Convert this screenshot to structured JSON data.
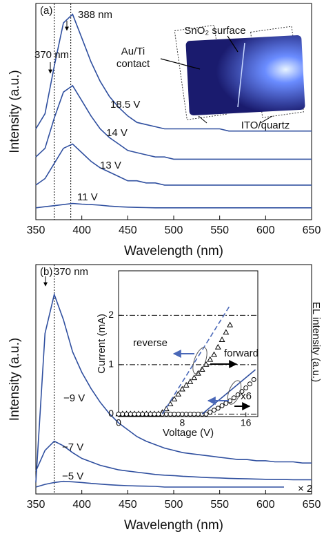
{
  "chart_data": [
    {
      "type": "line",
      "label": "(a)",
      "xlabel": "Wavelength (nm)",
      "ylabel": "Intensity (a.u.)",
      "xlim": [
        350,
        650
      ],
      "xticks": [
        350,
        400,
        450,
        500,
        550,
        600,
        650
      ],
      "ylim": [
        0,
        10
      ],
      "x": [
        350,
        360,
        370,
        380,
        390,
        400,
        410,
        420,
        430,
        440,
        450,
        460,
        470,
        480,
        490,
        500,
        510,
        520,
        530,
        540,
        550,
        560,
        570,
        580,
        590,
        600,
        610,
        620,
        630,
        640,
        650
      ],
      "series": [
        {
          "name": "18.5 V",
          "color": "#2f4f9f",
          "values": [
            4.2,
            4.9,
            7.1,
            9.1,
            9.5,
            8.4,
            7.3,
            6.4,
            5.7,
            5.2,
            4.8,
            4.5,
            4.4,
            4.3,
            4.2,
            4.2,
            4.2,
            4.2,
            4.2,
            4.2,
            4.2,
            4.1,
            4.1,
            4.1,
            4.1,
            4.1,
            4.1,
            4.1,
            4.1,
            4.1,
            4.1
          ]
        },
        {
          "name": "14 V",
          "color": "#2f4f9f",
          "values": [
            2.9,
            3.3,
            4.7,
            5.9,
            6.2,
            5.5,
            4.8,
            4.2,
            3.8,
            3.5,
            3.2,
            3.1,
            3.0,
            2.9,
            2.9,
            2.8,
            2.8,
            2.8,
            2.8,
            2.8,
            2.8,
            2.8,
            2.8,
            2.8,
            2.8,
            2.8,
            2.8,
            2.8,
            2.8,
            2.8,
            2.8
          ]
        },
        {
          "name": "13 V",
          "color": "#2f4f9f",
          "values": [
            1.6,
            1.9,
            2.6,
            3.3,
            3.5,
            3.1,
            2.7,
            2.4,
            2.2,
            2.0,
            1.8,
            1.8,
            1.7,
            1.7,
            1.6,
            1.6,
            1.6,
            1.6,
            1.6,
            1.6,
            1.6,
            1.6,
            1.6,
            1.6,
            1.6,
            1.6,
            1.6,
            1.6,
            1.6,
            1.6,
            1.6
          ]
        },
        {
          "name": "11 V",
          "color": "#2f4f9f",
          "values": [
            0.55,
            0.6,
            0.65,
            0.7,
            0.75,
            0.72,
            0.7,
            0.67,
            0.63,
            0.6,
            0.58,
            0.57,
            0.56,
            0.55,
            0.55,
            0.55,
            0.55,
            0.55,
            0.55,
            0.55,
            0.55,
            0.55,
            0.55,
            0.55,
            0.55,
            0.55,
            0.55,
            0.55,
            0.55,
            0.55,
            0.55
          ]
        }
      ],
      "annotations": [
        {
          "text": "388 nm",
          "x": 388
        },
        {
          "text": "370 nm",
          "x": 370
        }
      ],
      "photo_labels": [
        "SnO₂ surface",
        "Au/Ti",
        "contact",
        "ITO/quartz"
      ]
    },
    {
      "type": "line",
      "label": "(b)",
      "xlabel": "Wavelength (nm)",
      "ylabel": "Intensity (a.u.)",
      "right_label": "EL intensity (a.u.)",
      "xlim": [
        350,
        650
      ],
      "xticks": [
        350,
        400,
        450,
        500,
        550,
        600,
        650
      ],
      "ylim": [
        0,
        10
      ],
      "x": [
        350,
        360,
        370,
        380,
        390,
        400,
        410,
        420,
        430,
        440,
        450,
        460,
        470,
        480,
        490,
        500,
        510,
        520,
        530,
        540,
        550,
        560,
        570,
        580,
        590,
        600,
        610,
        620,
        630,
        640,
        650
      ],
      "series": [
        {
          "name": "−9 V",
          "color": "#2f4f9f",
          "values": [
            0.5,
            7.0,
            8.7,
            7.6,
            6.2,
            5.3,
            4.6,
            4.0,
            3.5,
            3.1,
            2.8,
            2.5,
            2.3,
            2.15,
            2.0,
            1.9,
            1.8,
            1.75,
            1.7,
            1.65,
            1.6,
            1.55,
            1.5,
            1.5,
            1.45,
            1.45,
            1.4,
            1.4,
            1.4,
            1.35,
            1.35
          ]
        },
        {
          "name": "−7 V",
          "color": "#2f4f9f",
          "values": [
            1.0,
            1.9,
            2.3,
            2.1,
            1.8,
            1.55,
            1.4,
            1.25,
            1.15,
            1.05,
            1.0,
            0.95,
            0.9,
            0.85,
            0.82,
            0.8,
            0.77,
            0.75,
            0.73,
            0.71,
            0.7,
            0.68,
            0.67,
            0.66,
            0.65,
            0.64,
            0.63,
            0.63,
            0.62,
            0.62,
            0.62
          ]
        },
        {
          "name": "−5 V",
          "color": "#2f4f9f",
          "values": [
            0.3,
            0.42,
            0.5,
            0.55,
            0.53,
            0.5,
            0.46,
            0.43,
            0.4,
            0.38,
            0.36,
            0.35,
            0.34,
            0.33,
            0.3,
            0.3,
            0.3,
            0.3,
            0.3,
            0.3,
            0.3,
            0.3,
            0.3,
            0.3,
            0.3,
            0.3,
            0.3,
            0.3,
            null,
            null,
            null
          ]
        }
      ],
      "annotations": [
        {
          "text": "370 nm",
          "x": 370
        },
        {
          "text": "× 2"
        }
      ]
    },
    {
      "type": "scatter",
      "xlabel": "Voltage (V)",
      "ylabel": "Current (mA)",
      "xlim": [
        0,
        17.5
      ],
      "xticks": [
        0,
        8,
        16
      ],
      "ylim": [
        -0.05,
        2.9
      ],
      "yticks": [
        0,
        1,
        2
      ],
      "grid": true,
      "series": [
        {
          "color": "#000000",
          "marker": "triangle",
          "x": [
            0,
            0.5,
            1,
            1.5,
            2,
            2.5,
            3,
            3.5,
            4,
            4.5,
            5,
            5.5,
            6,
            6.5,
            7,
            7.5,
            8,
            8.5,
            9,
            9.5,
            10,
            10.5,
            11,
            11.5,
            12,
            12.5,
            13,
            13.5,
            14
          ],
          "values": [
            0,
            0,
            0,
            0,
            0,
            0,
            0,
            0,
            0,
            0,
            0,
            0.03,
            0.1,
            0.2,
            0.3,
            0.4,
            0.5,
            0.58,
            0.65,
            0.73,
            0.82,
            0.9,
            1.0,
            1.1,
            1.2,
            1.35,
            1.5,
            1.65,
            1.8
          ]
        },
        {
          "color": "#000000",
          "marker": "circle",
          "x": [
            0,
            0.5,
            1,
            1.5,
            2,
            2.5,
            3,
            3.5,
            4,
            4.5,
            5,
            5.5,
            6,
            6.5,
            7,
            7.5,
            8,
            8.5,
            9,
            9.5,
            10,
            10.5,
            11,
            11.5,
            12,
            12.5,
            13,
            13.5,
            14,
            14.5,
            15,
            15.5,
            16,
            16.5,
            17
          ],
          "values": [
            0,
            0,
            0,
            0,
            0,
            0,
            0,
            0,
            0,
            0,
            0,
            0,
            0,
            0,
            0,
            0,
            0,
            0,
            0,
            0,
            0,
            0,
            0,
            0.04,
            0.08,
            0.12,
            0.17,
            0.22,
            0.27,
            0.33,
            0.39,
            0.46,
            0.53,
            0.61,
            0.7
          ]
        },
        {
          "color": "#4a68b8",
          "linestyle": "dashed",
          "x": [
            5.5,
            14
          ],
          "values": [
            0,
            2.2
          ]
        },
        {
          "color": "#2f4f9f",
          "linestyle": "solid",
          "x": [
            10.5,
            17.2
          ],
          "values": [
            0,
            0.9
          ]
        }
      ],
      "annotations": [
        {
          "text": "reverse"
        },
        {
          "text": "forward"
        },
        {
          "text": "x6"
        }
      ]
    }
  ]
}
